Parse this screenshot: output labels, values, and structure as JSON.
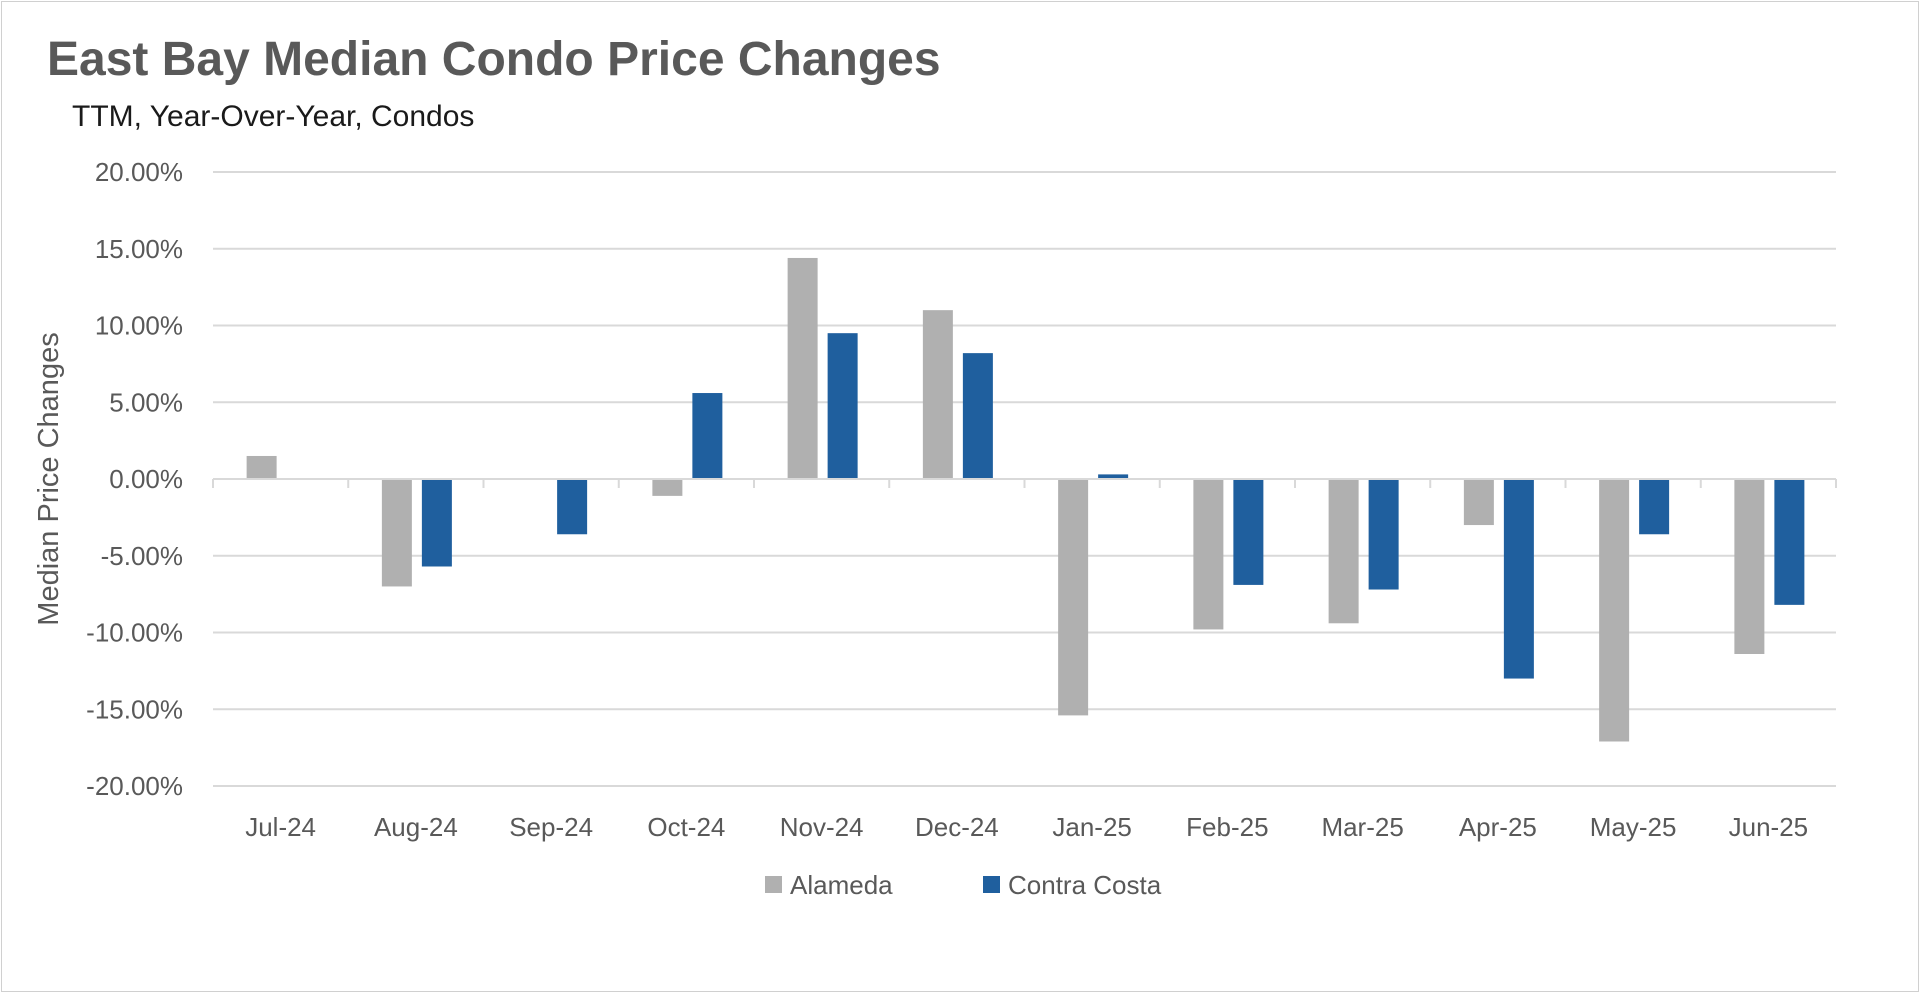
{
  "title": "East Bay Median Condo Price Changes",
  "subtitle": "TTM, Year-Over-Year,  Condos",
  "chart_data": {
    "type": "bar",
    "categories": [
      "Jul-24",
      "Aug-24",
      "Sep-24",
      "Oct-24",
      "Nov-24",
      "Dec-24",
      "Jan-25",
      "Feb-25",
      "Mar-25",
      "Apr-25",
      "May-25",
      "Jun-25"
    ],
    "series": [
      {
        "name": "Alameda",
        "color": "#b0b0b0",
        "values": [
          1.5,
          -7.0,
          0,
          -1.1,
          14.4,
          11.0,
          -15.4,
          -9.8,
          -9.4,
          -3.0,
          -17.1,
          -11.4
        ]
      },
      {
        "name": "Contra Costa",
        "color": "#1f5f9e",
        "values": [
          0,
          -5.7,
          -3.6,
          5.6,
          9.5,
          8.2,
          0.3,
          -6.9,
          -7.2,
          -13.0,
          -3.6,
          -8.2
        ]
      }
    ],
    "ylabel": "Median Price Changes",
    "ylim": [
      -20,
      20
    ],
    "yticks": [
      "20.00%",
      "15.00%",
      "10.00%",
      "5.00%",
      "0.00%",
      "-5.00%",
      "-10.00%",
      "-15.00%",
      "-20.00%"
    ],
    "gridlines": true,
    "legend_position": "bottom"
  }
}
